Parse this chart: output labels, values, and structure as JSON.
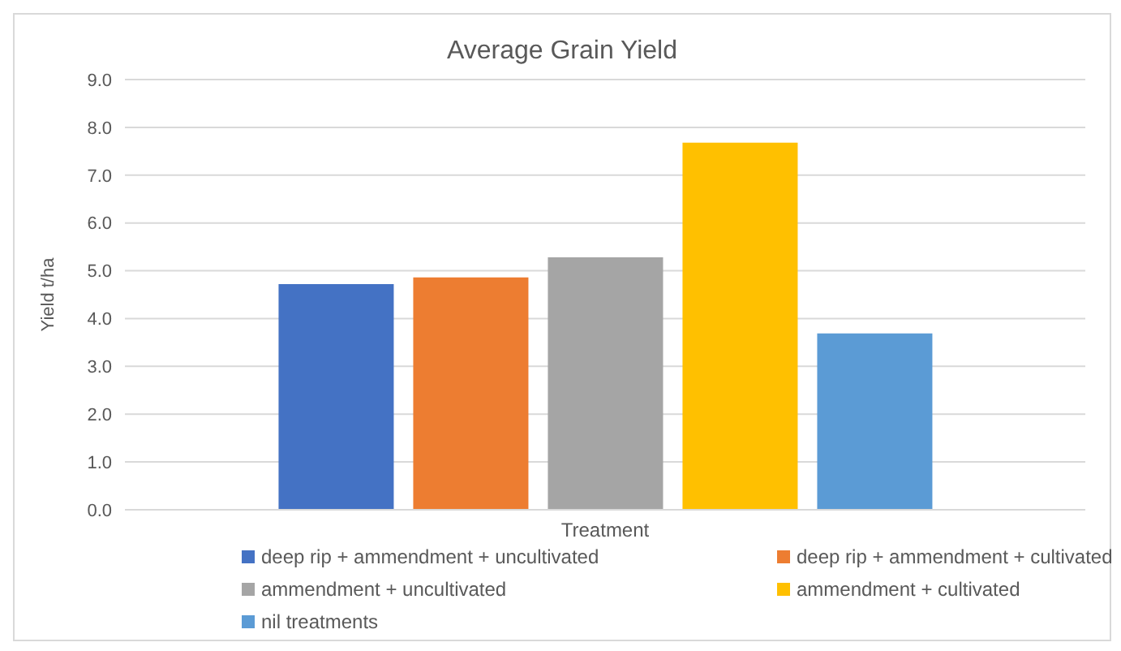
{
  "chart_data": {
    "type": "bar",
    "title": "Average Grain Yield",
    "ylabel": "Yield t/ha",
    "categories": [
      "Treatment"
    ],
    "series": [
      {
        "name": "deep rip + ammendment + uncultivated",
        "color": "#4472c4",
        "values": [
          4.72
        ]
      },
      {
        "name": "deep rip + ammendment + cultivated",
        "color": "#ed7d31",
        "values": [
          4.86
        ]
      },
      {
        "name": "ammendment + uncultivated",
        "color": "#a5a5a5",
        "values": [
          5.28
        ]
      },
      {
        "name": "ammendment + cultivated",
        "color": "#ffc000",
        "values": [
          7.68
        ]
      },
      {
        "name": "nil treatments",
        "color": "#5b9bd5",
        "values": [
          3.69
        ]
      }
    ],
    "ylim": [
      0,
      9
    ],
    "yticks": [
      {
        "value": 0,
        "label": "0.0"
      },
      {
        "value": 1,
        "label": "1.0"
      },
      {
        "value": 2,
        "label": "2.0"
      },
      {
        "value": 3,
        "label": "3.0"
      },
      {
        "value": 4,
        "label": "4.0"
      },
      {
        "value": 5,
        "label": "5.0"
      },
      {
        "value": 6,
        "label": "6.0"
      },
      {
        "value": 7,
        "label": "7.0"
      },
      {
        "value": 8,
        "label": "8.0"
      },
      {
        "value": 9,
        "label": "9.0"
      }
    ],
    "grid": "y",
    "legend": "bottom"
  }
}
